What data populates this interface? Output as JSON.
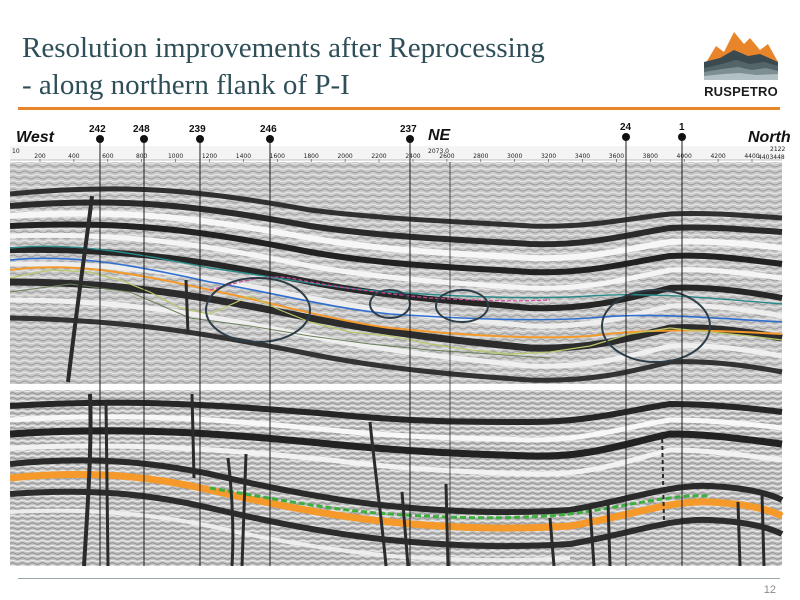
{
  "slide": {
    "title_line1": "Resolution improvements after Reprocessing",
    "title_line2": "- along northern flank of P-I",
    "page_number": "12"
  },
  "logo": {
    "text": "RUSPETRO",
    "accent_color": "#e8842a",
    "icon": "mountain-logo-icon"
  },
  "section": {
    "label_left": "West",
    "label_middle": "NE",
    "label_right": "North",
    "wells": [
      "242",
      "248",
      "239",
      "246",
      "237",
      "24",
      "1"
    ],
    "scale_left": "10",
    "scale_ticks": [
      "200",
      "400",
      "600",
      "800",
      "1000",
      "1200",
      "1400",
      "1600",
      "1800",
      "2000",
      "2200",
      "2400",
      "2600",
      "2800",
      "3000",
      "3200",
      "3400",
      "3600",
      "3800",
      "4000",
      "4200",
      "4400"
    ],
    "scale_top_mid": "2073.0",
    "scale_top_right": "2122",
    "scale_right": "4403448"
  },
  "colors": {
    "title": "#2f4f58",
    "accent": "#e8842a",
    "horizon_orange": "#f59a2a",
    "horizon_green": "#3fae3f",
    "horizon_blue": "#2f6fd0",
    "horizon_teal": "#2a8a8a",
    "horizon_pink": "#d04a9a"
  }
}
